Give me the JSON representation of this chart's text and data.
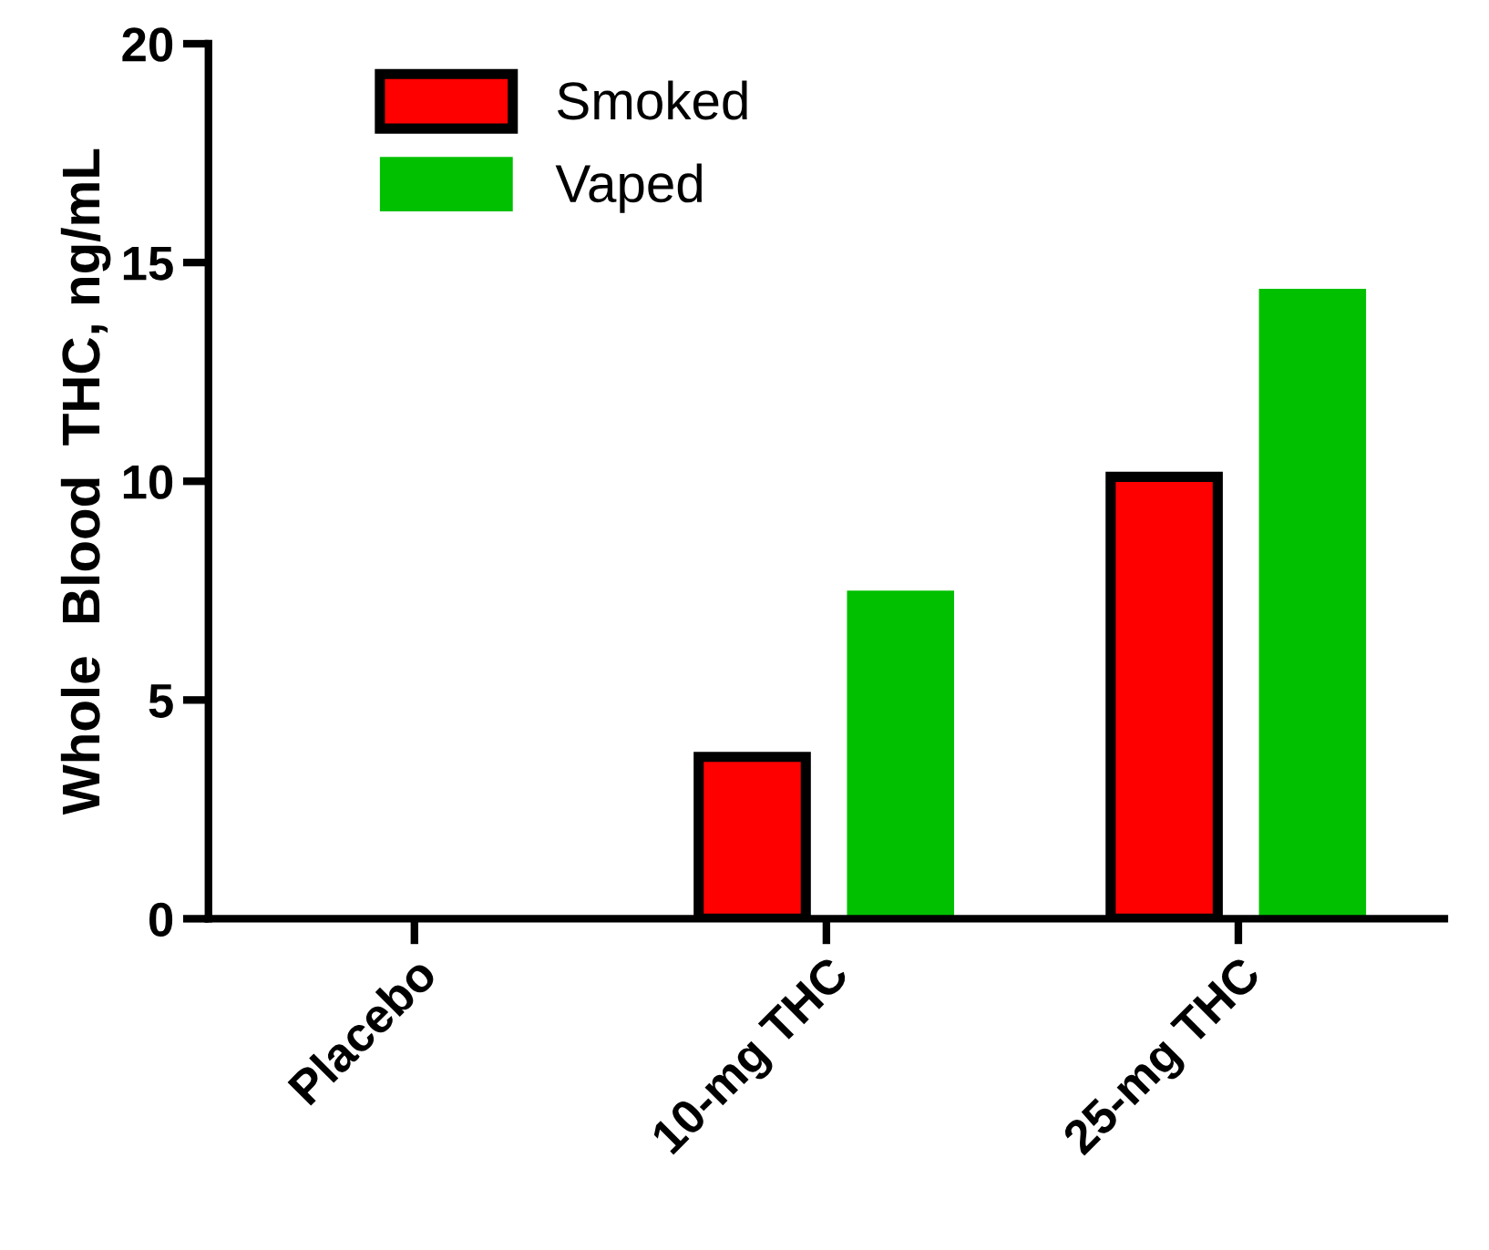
{
  "chart_data": {
    "type": "bar",
    "ylabel": "Whole  Blood  THC, ng/mL",
    "categories": [
      "Placebo",
      "10-mg THC",
      "25-mg THC"
    ],
    "series": [
      {
        "name": "Smoked",
        "color": "#ff0000",
        "values": [
          null,
          3.7,
          10.1
        ]
      },
      {
        "name": "Vaped",
        "color": "#00c000",
        "values": [
          null,
          7.5,
          14.4
        ]
      }
    ],
    "ylim": [
      0,
      20
    ],
    "yticks": [
      0,
      5,
      10,
      15,
      20
    ],
    "grid": false,
    "legend": "top left"
  }
}
